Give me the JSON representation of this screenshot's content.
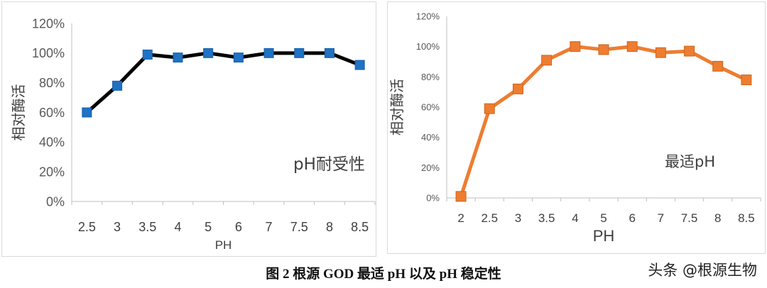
{
  "chart_data": [
    {
      "type": "line",
      "annotation": "pH耐受性",
      "xlabel": "PH",
      "ylabel": "相对酶活",
      "categories": [
        "2.5",
        "3",
        "3.5",
        "4",
        "5",
        "6",
        "7",
        "7.5",
        "8",
        "8.5"
      ],
      "series": [
        {
          "values": [
            0.6,
            0.78,
            0.99,
            0.97,
            1.0,
            0.97,
            1.0,
            1.0,
            1.0,
            0.92
          ]
        }
      ],
      "yticks": [
        "0%",
        "20%",
        "40%",
        "60%",
        "80%",
        "100%",
        "120%"
      ],
      "ylim": [
        0,
        1.2
      ],
      "grid": false,
      "color": "#000000",
      "marker_color": "#1f72c4"
    },
    {
      "type": "line",
      "annotation": "最适pH",
      "xlabel": "PH",
      "ylabel": "相对酶活",
      "categories": [
        "2",
        "2.5",
        "3",
        "3.5",
        "4",
        "5",
        "6",
        "7",
        "7.5",
        "8",
        "8.5"
      ],
      "series": [
        {
          "values": [
            0.01,
            0.59,
            0.72,
            0.91,
            1.0,
            0.98,
            1.0,
            0.96,
            0.97,
            0.87,
            0.78
          ]
        }
      ],
      "yticks": [
        "0%",
        "20%",
        "40%",
        "60%",
        "80%",
        "100%",
        "120%"
      ],
      "ylim": [
        0,
        1.2
      ],
      "grid": false,
      "color": "#ed7d31",
      "marker_color": "#ed7d31"
    }
  ],
  "caption": "图 2  根源 GOD 最适 pH 以及 pH 稳定性",
  "watermark": "头条 @根源生物"
}
